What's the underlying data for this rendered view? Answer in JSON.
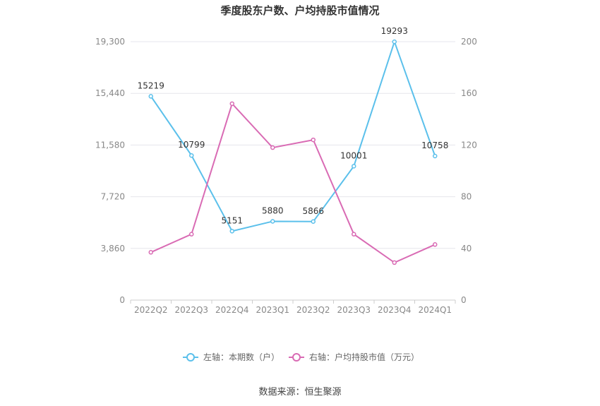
{
  "chart_data": {
    "type": "line",
    "title": "季度股东户数、户均持股市值情况",
    "categories": [
      "2022Q2",
      "2022Q3",
      "2022Q4",
      "2023Q1",
      "2023Q2",
      "2023Q3",
      "2023Q4",
      "2024Q1"
    ],
    "series": [
      {
        "name": "左轴：本期数（户）",
        "axis": "left",
        "color": "#5bc0eb",
        "values": [
          15219,
          10799,
          5151,
          5880,
          5866,
          10001,
          19293,
          10758
        ],
        "labels": [
          "15219",
          "10799",
          "5151",
          "5880",
          "5866",
          "10001",
          "19293",
          "10758"
        ]
      },
      {
        "name": "右轴：户均持股市值（万元）",
        "axis": "right",
        "color": "#d96bb4",
        "values": [
          37,
          51,
          152,
          118,
          124,
          51,
          29,
          43
        ]
      }
    ],
    "left_axis": {
      "ylim": [
        0,
        19300
      ],
      "ticks": [
        0,
        3860,
        7720,
        11580,
        15440,
        19300
      ],
      "tick_labels": [
        "0",
        "3,860",
        "7,720",
        "11,580",
        "15,440",
        "19,300"
      ]
    },
    "right_axis": {
      "ylim": [
        0,
        200
      ],
      "ticks": [
        0,
        40,
        80,
        120,
        160,
        200
      ],
      "tick_labels": [
        "0",
        "40",
        "80",
        "120",
        "160",
        "200"
      ]
    },
    "grid": true,
    "legend_position": "bottom"
  },
  "source": "数据来源：恒生聚源"
}
